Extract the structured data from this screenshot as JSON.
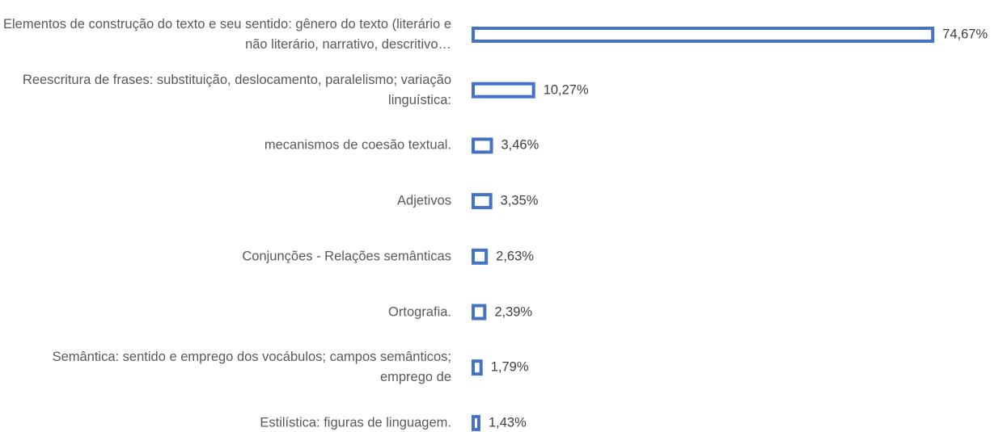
{
  "chart_data": {
    "type": "barh",
    "categories": [
      "Elementos de construção do texto e seu sentido: gênero do texto (literário e não literário, narrativo, descritivo…",
      "Reescritura de frases: substituição, deslocamento, paralelismo; variação linguística:",
      "mecanismos de coesão textual.",
      "Adjetivos",
      "Conjunções - Relações semânticas",
      "Ortografia.",
      "Semântica: sentido e emprego dos vocábulos; campos semânticos; emprego de",
      "Estilística: figuras de linguagem."
    ],
    "values": [
      74.67,
      10.27,
      3.46,
      3.35,
      2.63,
      2.39,
      1.79,
      1.43
    ],
    "value_labels": [
      "74,67%",
      "10,27%",
      "3,46%",
      "3,35%",
      "2,63%",
      "2,39%",
      "1,79%",
      "1,43%"
    ],
    "color": "#4472c4",
    "xlim": [
      0,
      80
    ]
  }
}
